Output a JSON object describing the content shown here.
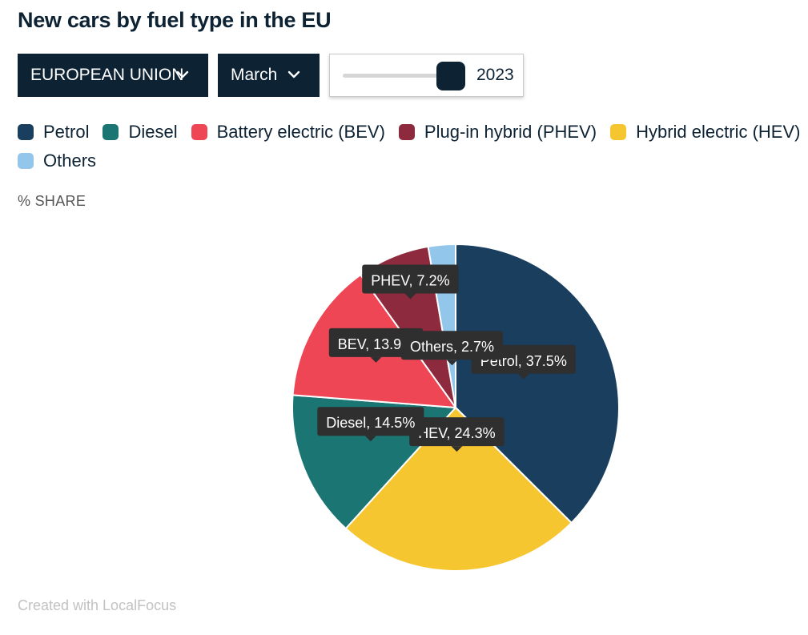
{
  "title": "New cars by fuel type in the EU",
  "controls": {
    "region_label": "EUROPEAN UNION",
    "month_label": "March",
    "year_value": "2023",
    "year_slider_position": 0.86
  },
  "subtitle": "% SHARE",
  "credit": "Created with LocalFocus",
  "chart_data": {
    "type": "pie",
    "title": "New cars by fuel type in the EU",
    "subtitle": "% SHARE",
    "legend_placement": "top",
    "series": [
      {
        "name": "Petrol",
        "short": "Petrol",
        "value": 37.5,
        "label": "Petrol, 37.5%",
        "color": "#193e5e"
      },
      {
        "name": "Hybrid electric (HEV)",
        "short": "HEV",
        "value": 24.3,
        "label": "HEV, 24.3%",
        "color": "#f6c630"
      },
      {
        "name": "Diesel",
        "short": "Diesel",
        "value": 14.5,
        "label": "Diesel, 14.5%",
        "color": "#1b7573"
      },
      {
        "name": "Battery electric (BEV)",
        "short": "BEV",
        "value": 13.9,
        "label": "BEV, 13.9%",
        "color": "#ee4655"
      },
      {
        "name": "Plug-in hybrid (PHEV)",
        "short": "PHEV",
        "value": 7.2,
        "label": "PHEV, 7.2%",
        "color": "#8e2a3e"
      },
      {
        "name": "Others",
        "short": "Others",
        "value": 2.7,
        "label": "Others, 2.7%",
        "color": "#92c6ea"
      }
    ],
    "legend_order": [
      "Petrol",
      "Diesel",
      "Battery electric (BEV)",
      "Plug-in hybrid (PHEV)",
      "Hybrid electric (HEV)",
      "Others"
    ]
  },
  "colors": {
    "navy": "#0d2233",
    "tooltip_bg": "#2f2f2f"
  }
}
